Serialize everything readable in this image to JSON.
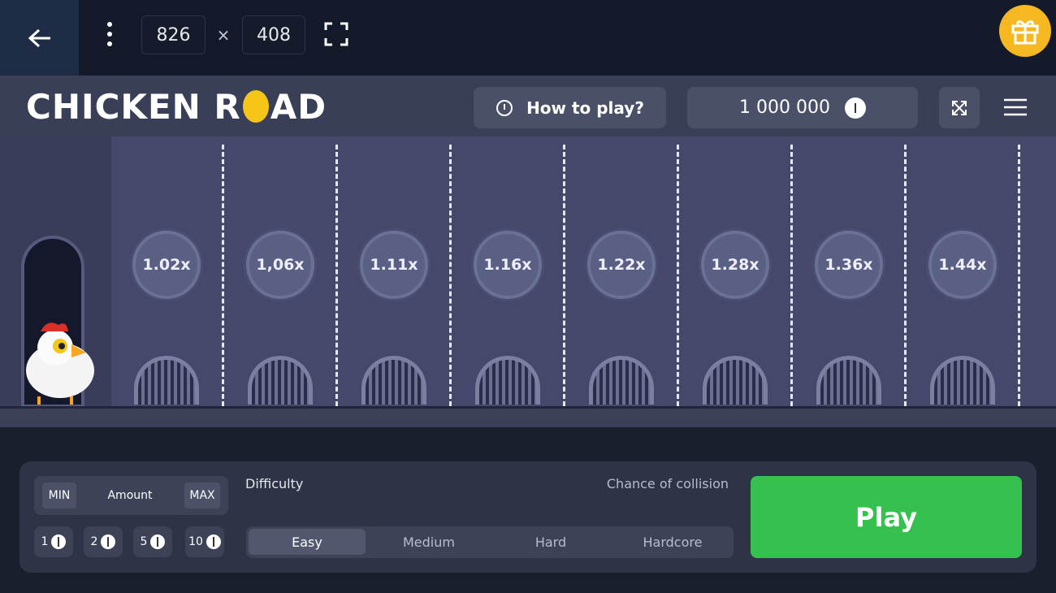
{
  "toolbar": {
    "width": "826",
    "separator": "×",
    "height": "408"
  },
  "header": {
    "logo": [
      "CHICKEN R",
      "AD"
    ],
    "how_to_play": "How to play?",
    "balance": "1 000 000"
  },
  "lanes": {
    "multipliers": [
      "1.02x",
      "1,06x",
      "1.11x",
      "1.16x",
      "1.22x",
      "1.28x",
      "1.36x",
      "1.44x"
    ]
  },
  "controls": {
    "min": "MIN",
    "amount": "Amount",
    "max": "MAX",
    "chips": [
      "1",
      "2",
      "5",
      "10"
    ],
    "difficulty": "Difficulty",
    "chance": "Chance of collision",
    "levels": [
      "Easy",
      "Medium",
      "Hard",
      "Hardcore"
    ],
    "play": "Play"
  }
}
